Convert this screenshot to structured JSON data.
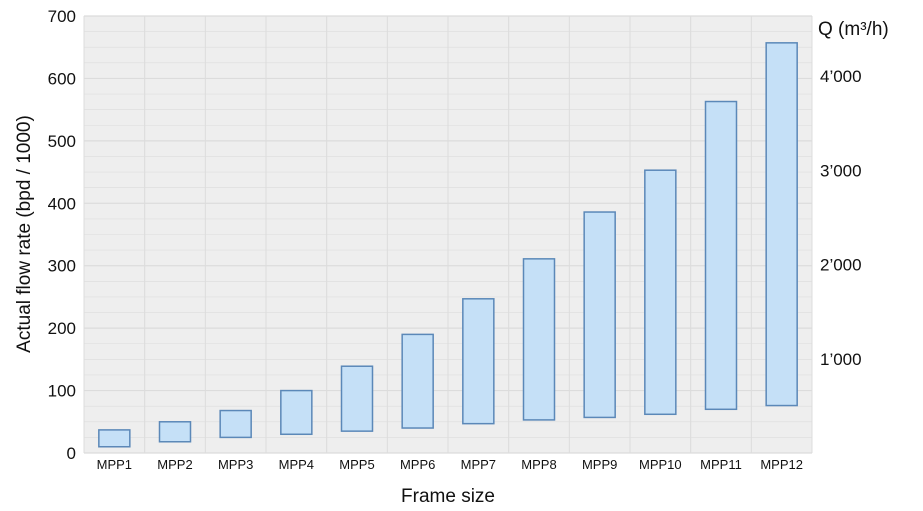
{
  "chart_data": {
    "type": "bar",
    "subtype": "floating-range",
    "xlabel": "Frame size",
    "ylabel": "Actual flow rate (bpd / 1000)",
    "y2label": "Q (m³/h)",
    "ylim": [
      0,
      700
    ],
    "yticks": [
      "0",
      "100",
      "200",
      "300",
      "400",
      "500",
      "600",
      "700"
    ],
    "y2ticks": [
      {
        "label": "1’000",
        "value": 1000
      },
      {
        "label": "2’000",
        "value": 2000
      },
      {
        "label": "3’000",
        "value": 3000
      },
      {
        "label": "4’000",
        "value": 4000
      }
    ],
    "grid": true,
    "colors": {
      "bar_fill": "#c5e0f7",
      "bar_stroke": "#5b88b8",
      "plot_bg": "#eeeeee",
      "grid": "#dcdcdc"
    },
    "categories": [
      "MPP1",
      "MPP2",
      "MPP3",
      "MPP4",
      "MPP5",
      "MPP6",
      "MPP7",
      "MPP8",
      "MPP9",
      "MPP10",
      "MPP11",
      "MPP12"
    ],
    "series": [
      {
        "low": [
          10,
          18,
          25,
          30,
          35,
          40,
          47,
          53,
          57,
          62,
          70,
          76
        ],
        "high": [
          37,
          50,
          68,
          100,
          139,
          190,
          247,
          311,
          386,
          453,
          563,
          657
        ]
      }
    ]
  }
}
